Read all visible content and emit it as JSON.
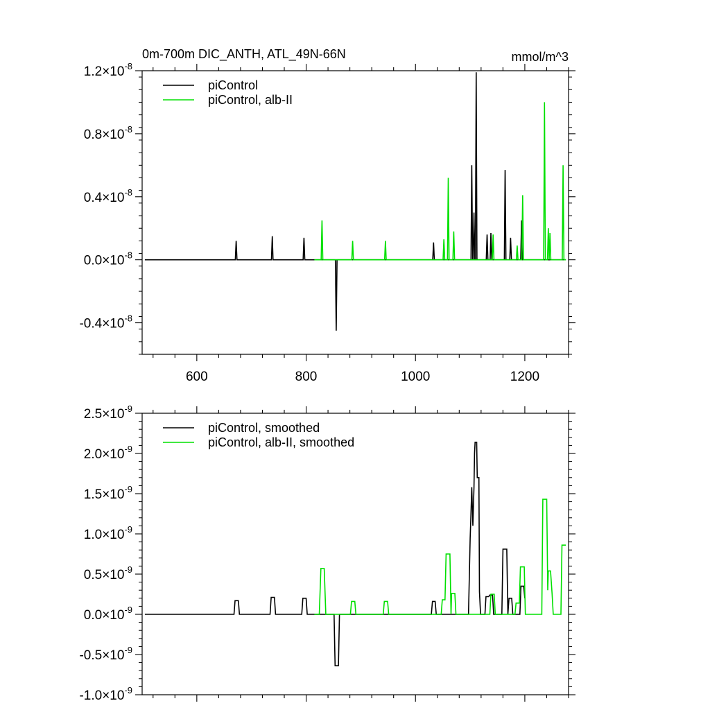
{
  "chart_data": [
    {
      "type": "line",
      "title": "0m-700m DIC_ANTH, ATL_49N-66N",
      "units": "mmol/m^3",
      "xlim": [
        500,
        1280
      ],
      "ylim": [
        -6e-09,
        1.2e-08
      ],
      "x_ticks": [
        600,
        800,
        1000,
        1200
      ],
      "x_tick_labels": [
        "600",
        "800",
        "1000",
        "1200"
      ],
      "y_ticks": [
        -4e-09,
        0.0,
        4e-09,
        8e-09,
        1.2e-08
      ],
      "y_tick_labels": [
        {
          "mant": "-0.4",
          "exp": "-8"
        },
        {
          "mant": "0.0",
          "exp": "-8"
        },
        {
          "mant": "0.4",
          "exp": "-8"
        },
        {
          "mant": "0.8",
          "exp": "-8"
        },
        {
          "mant": "1.2",
          "exp": "-8"
        }
      ],
      "legend": {
        "placement": "top-left"
      },
      "series": [
        {
          "name": "piControl",
          "color": "#000000",
          "x_range": [
            505,
            1275
          ],
          "baseline": 0.0,
          "spikes": [
            [
              672,
              1.2e-09
            ],
            [
              738,
              1.5e-09
            ],
            [
              796,
              1.4e-09
            ],
            [
              855,
              -4.5e-09
            ],
            [
              1033,
              1.1e-09
            ],
            [
              1103,
              6e-09
            ],
            [
              1107,
              3e-09
            ],
            [
              1111,
              1.19e-08
            ],
            [
              1131,
              1.6e-09
            ],
            [
              1138,
              1.7e-09
            ],
            [
              1164,
              5.7e-09
            ],
            [
              1174,
              1.4e-09
            ],
            [
              1194,
              2.5e-09
            ]
          ]
        },
        {
          "name": "piControl, alb-II",
          "color": "#00e000",
          "x_range": [
            815,
            1275
          ],
          "baseline": 0.0,
          "spikes": [
            [
              829,
              2.5e-09
            ],
            [
              885,
              1.2e-09
            ],
            [
              945,
              1.2e-09
            ],
            [
              1052,
              1.3e-09
            ],
            [
              1060,
              5.2e-09
            ],
            [
              1070,
              1.8e-09
            ],
            [
              1142,
              1.6e-09
            ],
            [
              1186,
              9e-10
            ],
            [
              1196,
              4.1e-09
            ],
            [
              1236,
              1e-08
            ],
            [
              1243,
              2e-09
            ],
            [
              1246,
              1.7e-09
            ],
            [
              1270,
              6e-09
            ]
          ]
        }
      ]
    },
    {
      "type": "line",
      "title": "",
      "xlim": [
        500,
        1280
      ],
      "ylim": [
        -1e-09,
        2.5e-09
      ],
      "x_ticks": [
        600,
        800,
        1000,
        1200
      ],
      "y_ticks": [
        -1e-09,
        -5e-10,
        0.0,
        5e-10,
        1e-09,
        1.5e-09,
        2e-09,
        2.5e-09
      ],
      "y_tick_labels": [
        {
          "mant": "-1.0",
          "exp": "-9"
        },
        {
          "mant": "-0.5",
          "exp": "-9"
        },
        {
          "mant": "0.0",
          "exp": "-9"
        },
        {
          "mant": "0.5",
          "exp": "-9"
        },
        {
          "mant": "1.0",
          "exp": "-9"
        },
        {
          "mant": "1.5",
          "exp": "-9"
        },
        {
          "mant": "2.0",
          "exp": "-9"
        },
        {
          "mant": "2.5",
          "exp": "-9"
        }
      ],
      "legend": {
        "placement": "top-left"
      },
      "series": [
        {
          "name": "piControl, smoothed",
          "color": "#000000",
          "points": [
            [
              505,
              0
            ],
            [
              668,
              0
            ],
            [
              670,
              1.7e-10
            ],
            [
              676,
              1.7e-10
            ],
            [
              678,
              0
            ],
            [
              734,
              0
            ],
            [
              736,
              2.1e-10
            ],
            [
              742,
              2.1e-10
            ],
            [
              744,
              0
            ],
            [
              792,
              0
            ],
            [
              794,
              2e-10
            ],
            [
              800,
              2e-10
            ],
            [
              802,
              0
            ],
            [
              851,
              0
            ],
            [
              853,
              -6.4e-10
            ],
            [
              859,
              -6.4e-10
            ],
            [
              861,
              0
            ],
            [
              1029,
              0
            ],
            [
              1031,
              1.6e-10
            ],
            [
              1036,
              1.6e-10
            ],
            [
              1038,
              0
            ],
            [
              1097,
              0
            ],
            [
              1100,
              9.5e-10
            ],
            [
              1101,
              1.15e-09
            ],
            [
              1103,
              1.58e-09
            ],
            [
              1105,
              1.1e-09
            ],
            [
              1107,
              1.58e-09
            ],
            [
              1108,
              2e-09
            ],
            [
              1109,
              2.14e-09
            ],
            [
              1112,
              2.14e-09
            ],
            [
              1113,
              1.7e-09
            ],
            [
              1116,
              1.7e-09
            ],
            [
              1117,
              2.8e-10
            ],
            [
              1119,
              0
            ],
            [
              1127,
              0
            ],
            [
              1129,
              2.2e-10
            ],
            [
              1134,
              2.2e-10
            ],
            [
              1136,
              2.4e-10
            ],
            [
              1141,
              2.4e-10
            ],
            [
              1143,
              0
            ],
            [
              1158,
              0
            ],
            [
              1160,
              8.1e-10
            ],
            [
              1167,
              8.1e-10
            ],
            [
              1169,
              0
            ],
            [
              1171,
              2e-10
            ],
            [
              1176,
              2e-10
            ],
            [
              1178,
              0
            ],
            [
              1191,
              0
            ],
            [
              1193,
              3.5e-10
            ],
            [
              1198,
              3.5e-10
            ],
            [
              1200,
              2e-10
            ]
          ]
        },
        {
          "name": "piControl, alb-II, smoothed",
          "color": "#00e000",
          "points": [
            [
              815,
              0
            ],
            [
              824,
              0
            ],
            [
              827,
              5.7e-10
            ],
            [
              833,
              5.7e-10
            ],
            [
              836,
              0
            ],
            [
              881,
              0
            ],
            [
              883,
              1.6e-10
            ],
            [
              889,
              1.6e-10
            ],
            [
              891,
              0
            ],
            [
              941,
              0
            ],
            [
              943,
              1.6e-10
            ],
            [
              949,
              1.6e-10
            ],
            [
              951,
              0
            ],
            [
              1047,
              0
            ],
            [
              1049,
              1.8e-10
            ],
            [
              1054,
              1.8e-10
            ],
            [
              1056,
              7.5e-10
            ],
            [
              1063,
              7.5e-10
            ],
            [
              1065,
              0
            ],
            [
              1066,
              2.6e-10
            ],
            [
              1072,
              2.6e-10
            ],
            [
              1074,
              0
            ],
            [
              1136,
              0
            ],
            [
              1138,
              2.5e-10
            ],
            [
              1144,
              2.5e-10
            ],
            [
              1146,
              0
            ],
            [
              1182,
              0
            ],
            [
              1184,
              1.4e-10
            ],
            [
              1190,
              1.4e-10
            ],
            [
              1192,
              5.9e-10
            ],
            [
              1199,
              5.9e-10
            ],
            [
              1201,
              0
            ],
            [
              1231,
              0
            ],
            [
              1233,
              1.43e-09
            ],
            [
              1240,
              1.43e-09
            ],
            [
              1242,
              3e-10
            ],
            [
              1243,
              5.4e-10
            ],
            [
              1247,
              5.4e-10
            ],
            [
              1250,
              2.5e-10
            ],
            [
              1252,
              0
            ],
            [
              1266,
              0
            ],
            [
              1268,
              8.6e-10
            ],
            [
              1275,
              8.6e-10
            ]
          ]
        }
      ]
    }
  ]
}
